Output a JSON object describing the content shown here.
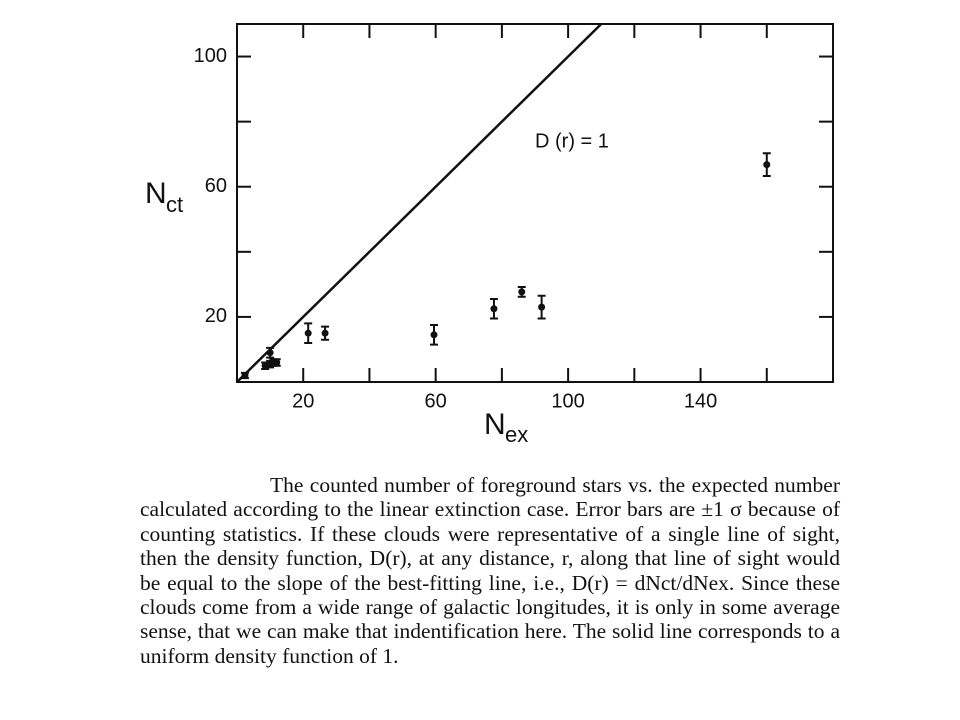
{
  "chart_data": {
    "type": "scatter",
    "xlabel_main": "N",
    "xlabel_sub": "ex",
    "ylabel_main": "N",
    "ylabel_sub": "ct",
    "xlim": [
      0,
      180
    ],
    "ylim": [
      0,
      110
    ],
    "xticks": [
      20,
      60,
      100,
      140
    ],
    "xminor": [
      40,
      80,
      120,
      160
    ],
    "yticks": [
      20,
      60,
      100
    ],
    "yminor": [
      40,
      80
    ],
    "series": [
      {
        "x": [
          2.4,
          8.5,
          10,
          11,
          12,
          10,
          21.5,
          26.6,
          59.5,
          77.6,
          86,
          92,
          160
        ],
        "y": [
          2,
          5,
          5.5,
          6,
          6,
          9,
          15,
          15,
          14.5,
          22.5,
          27.7,
          23,
          66.8
        ],
        "err": [
          0.8,
          1,
          1,
          1,
          1,
          1.5,
          3,
          2,
          3,
          3,
          1.5,
          3.5,
          3.5
        ],
        "color": "#111111"
      }
    ],
    "line": {
      "x": [
        0,
        110
      ],
      "y": [
        0,
        110
      ],
      "color": "#111111"
    },
    "annotation": "D (r) = 1"
  },
  "caption": "The counted number of foreground stars vs. the expected number calculated according to the linear extinction case. Error bars are ±1 σ because of counting statistics. If these clouds were representative of a single line of sight, then the density function, D(r), at any distance, r, along that line of sight would be equal to the slope of the best-fitting line, i.e., D(r) = dNct/dNex. Since these clouds come from a wide range of galactic longitudes, it is only in some average sense, that we can make that indentification here. The solid line corresponds to a uniform density function of 1."
}
